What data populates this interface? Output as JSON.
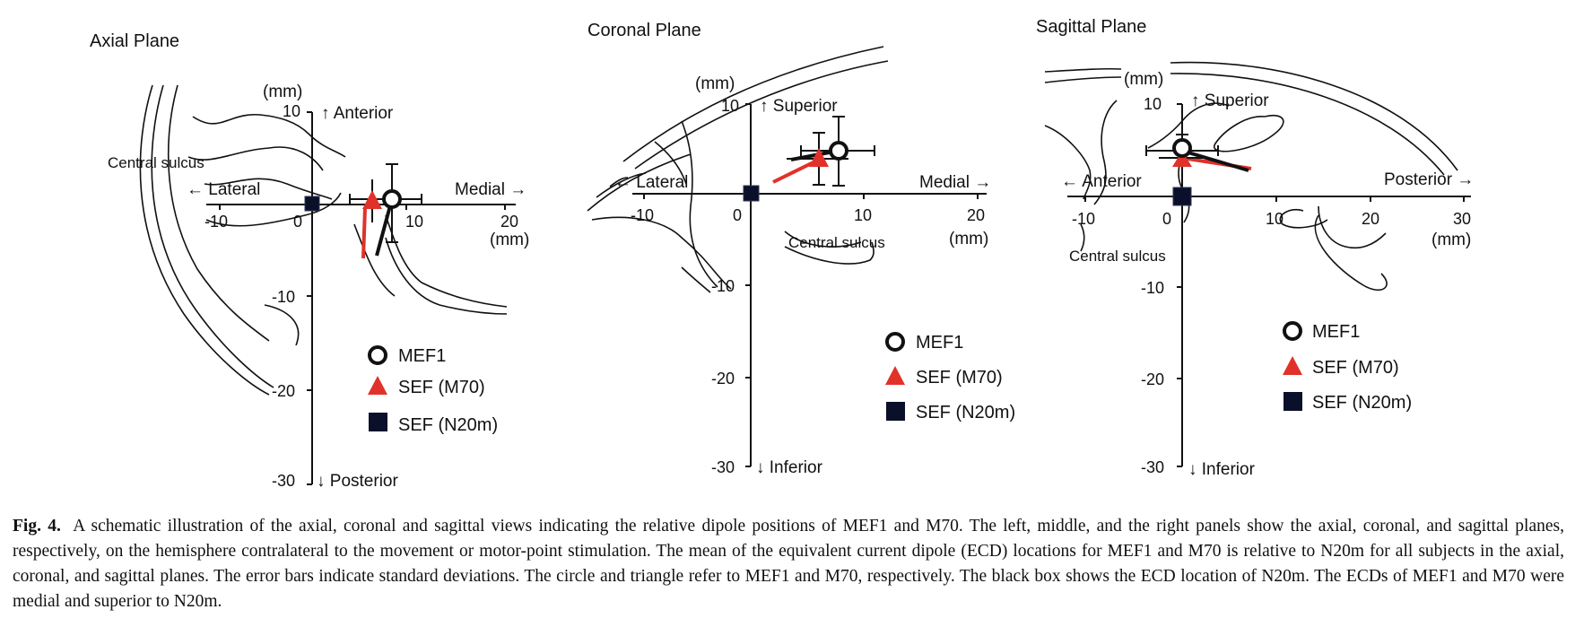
{
  "panels": {
    "axial": {
      "title": "Axial Plane",
      "unit_top": "(mm)",
      "dir_up": "↑ Anterior",
      "dir_down": "↓ Posterior",
      "dir_left": "← Lateral",
      "dir_right": "Medial →",
      "unit_right": "(mm)",
      "x_ticks": [
        "-10",
        "0",
        "10",
        "20"
      ],
      "y_ticks": [
        "10",
        "-10",
        "-20",
        "-30"
      ],
      "landmark": "Central sulcus"
    },
    "coronal": {
      "title": "Coronal Plane",
      "unit_top": "(mm)",
      "dir_up": "↑ Superior",
      "dir_down": "↓ Inferior",
      "dir_left": "← Lateral",
      "dir_right": "Medial →",
      "unit_right": "(mm)",
      "x_ticks": [
        "-10",
        "0",
        "10",
        "20"
      ],
      "y_ticks": [
        "10",
        "-10",
        "-20",
        "-30"
      ],
      "landmark": "Central sulcus"
    },
    "sagittal": {
      "title": "Sagittal Plane",
      "unit_top": "(mm)",
      "dir_up": "↑ Superior",
      "dir_down": "↓ Inferior",
      "dir_left": "← Anterior",
      "dir_right": "Posterior →",
      "unit_right": "(mm)",
      "x_ticks": [
        "-10",
        "0",
        "10",
        "20",
        "30"
      ],
      "y_ticks": [
        "10",
        "-10",
        "-20",
        "-30"
      ],
      "landmark": "Central sulcus"
    }
  },
  "legend": {
    "mef1": "MEF1",
    "m70": "SEF (M70)",
    "n20m": "SEF (N20m)"
  },
  "colors": {
    "m70": "#e0322a",
    "n20m": "#0a0f2a",
    "line": "#111111"
  },
  "caption": {
    "label": "Fig. 4.",
    "text": "A schematic illustration of the axial, coronal and sagittal views indicating the relative dipole positions of MEF1 and M70. The left, middle, and the right panels show the axial, coronal, and sagittal planes, respectively, on the hemisphere contralateral to the movement or motor-point stimulation. The mean of the equivalent current dipole (ECD) locations for MEF1 and M70 is relative to N20m for all subjects in the axial, coronal, and sagittal planes. The error bars indicate standard deviations. The circle and triangle refer to MEF1 and M70, respectively. The black box shows the ECD location of N20m. The ECDs of MEF1 and M70 were medial and superior to N20m."
  }
}
